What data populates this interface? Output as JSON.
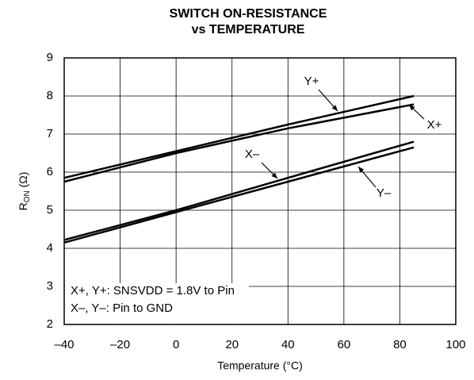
{
  "chart_data": {
    "type": "line",
    "title": [
      "SWITCH ON-RESISTANCE",
      "vs TEMPERATURE"
    ],
    "xlabel": "Temperature (°C)",
    "ylabel": [
      "R",
      "ON",
      " (Ω)"
    ],
    "annotation": [
      "X+, Y+: SNSVDD = 1.8V to Pin",
      "X–, Y–: Pin to GND"
    ],
    "x": [
      -40,
      0,
      40,
      85
    ],
    "series": [
      {
        "name": "Y+",
        "color": "#000000",
        "values": [
          5.85,
          6.55,
          7.25,
          8.0
        ]
      },
      {
        "name": "X+",
        "color": "#000000",
        "values": [
          5.75,
          6.5,
          7.15,
          7.78
        ]
      },
      {
        "name": "X–",
        "color": "#000000",
        "values": [
          4.22,
          5.0,
          5.85,
          6.8
        ]
      },
      {
        "name": "Y–",
        "color": "#000000",
        "values": [
          4.15,
          4.95,
          5.75,
          6.65
        ]
      }
    ],
    "xlim": [
      -40,
      100
    ],
    "xticks": [
      {
        "value": -40,
        "label": "–40"
      },
      {
        "value": -20,
        "label": "–20"
      },
      0,
      20,
      40,
      60,
      80,
      100
    ],
    "ylim": [
      2,
      9
    ],
    "yticks": [
      2,
      3,
      4,
      5,
      6,
      7,
      8,
      9
    ],
    "grid": true
  }
}
